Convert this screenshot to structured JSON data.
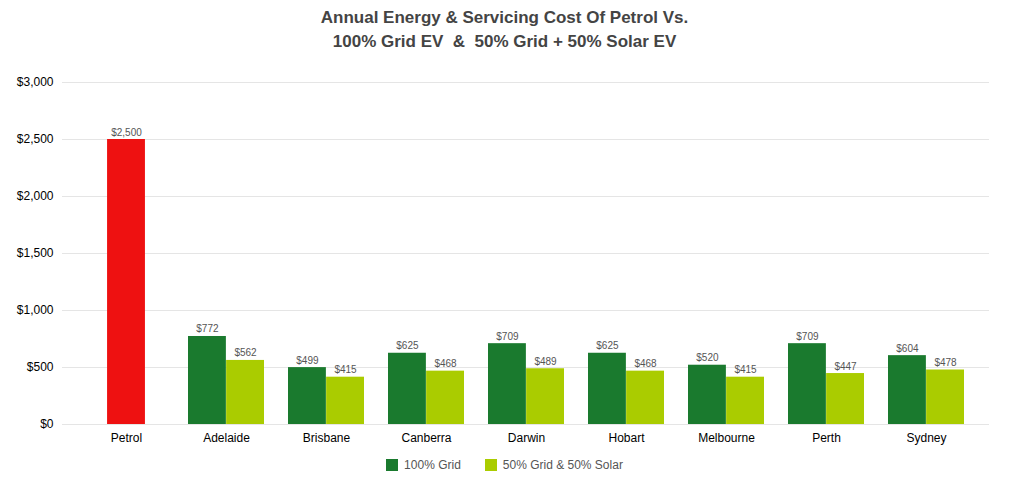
{
  "chart_data": {
    "type": "bar",
    "title": "Annual Energy & Servicing Cost Of Petrol Vs.\n100% Grid EV  &  50% Grid + 50% Solar EV",
    "categories": [
      "Petrol",
      "Adelaide",
      "Brisbane",
      "Canberra",
      "Darwin",
      "Hobart",
      "Melbourne",
      "Perth",
      "Sydney"
    ],
    "series": [
      {
        "color": "#EE1111",
        "values": [
          2500,
          null,
          null,
          null,
          null,
          null,
          null,
          null,
          null
        ],
        "value_labels": [
          "$2,500",
          null,
          null,
          null,
          null,
          null,
          null,
          null,
          null
        ]
      },
      {
        "name": "100% Grid",
        "color": "#1a7a2e",
        "values": [
          null,
          772,
          499,
          625,
          709,
          625,
          520,
          709,
          604
        ],
        "value_labels": [
          null,
          "$772",
          "$499",
          "$625",
          "$709",
          "$625",
          "$520",
          "$709",
          "$604"
        ]
      },
      {
        "name": "50% Grid & 50% Solar",
        "color": "#aacc00",
        "values": [
          null,
          562,
          415,
          468,
          489,
          468,
          415,
          447,
          478
        ],
        "value_labels": [
          null,
          "$562",
          "$415",
          "$468",
          "$489",
          "$468",
          "$415",
          "$447",
          "$478"
        ]
      }
    ],
    "ylim": [
      0,
      3000
    ],
    "yticks": [
      {
        "value": 0,
        "label": "$0"
      },
      {
        "value": 500,
        "label": "$500"
      },
      {
        "value": 1000,
        "label": "$1,000"
      },
      {
        "value": 1500,
        "label": "$1,500"
      },
      {
        "value": 2000,
        "label": "$2,000"
      },
      {
        "value": 2500,
        "label": "$2,500"
      },
      {
        "value": 3000,
        "label": "$3,000"
      }
    ],
    "grid": true,
    "data_labels": true,
    "legend": "bottom"
  }
}
